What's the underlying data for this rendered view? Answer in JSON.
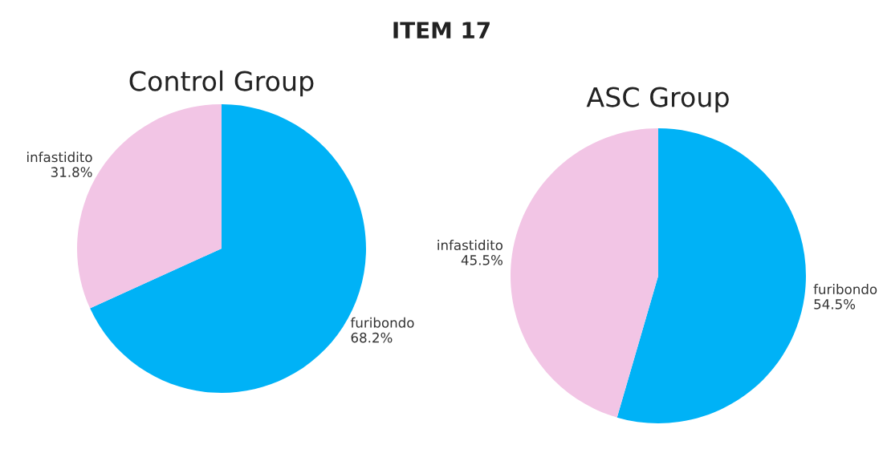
{
  "chart_data": [
    {
      "type": "pie",
      "title": "Control Group",
      "categories": [
        "furibondo",
        "infastidito"
      ],
      "values": [
        68.2,
        31.8
      ],
      "value_labels": [
        "68.2%",
        "31.8%"
      ],
      "colors": [
        "#00b2f6",
        "#f2c5e5"
      ],
      "annotations": [
        "ITEM 17"
      ]
    },
    {
      "type": "pie",
      "title": "ASC Group",
      "categories": [
        "furibondo",
        "infastidito"
      ],
      "values": [
        54.5,
        45.5
      ],
      "value_labels": [
        "54.5%",
        "45.5%"
      ],
      "colors": [
        "#00b2f6",
        "#f2c5e5"
      ]
    }
  ]
}
